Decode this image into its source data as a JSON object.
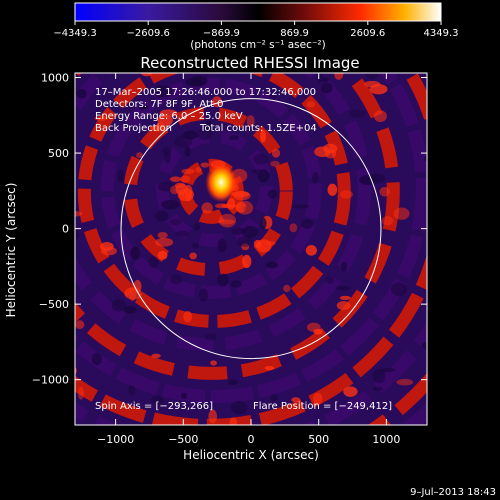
{
  "chart_data": {
    "type": "heatmap",
    "title": "Reconstructed RHESSI Image",
    "xlabel": "Heliocentric X (arcsec)",
    "ylabel": "Heliocentric Y (arcsec)",
    "xlim": [
      -1300,
      1300
    ],
    "ylim": [
      -1300,
      1030
    ],
    "x_ticks": [
      -1000,
      -500,
      0,
      500,
      1000
    ],
    "y_ticks": [
      1000,
      500,
      0,
      -500,
      -1000
    ],
    "x_tick_labels": [
      "−1000",
      "−500",
      "0",
      "500",
      "1000"
    ],
    "y_tick_labels": [
      "1000",
      "500",
      "0",
      "−500",
      "−1000"
    ],
    "colorbar": {
      "ticks": [
        -4349.3,
        -2609.6,
        -869.9,
        869.9,
        2609.6,
        4349.3
      ],
      "tick_labels": [
        "−4349.3",
        "−2609.6",
        "−869.9",
        "869.9",
        "2609.6",
        "4349.3"
      ],
      "range": [
        -4349.3,
        4349.3
      ],
      "unit_label": "(photons cm⁻² s⁻¹ asec⁻²)"
    },
    "annotations": {
      "time_range": "17–Mar–2005 17:26:46.000 to 17:32:46.000",
      "detectors": "Detectors: 7F 8F 9F, Att 0",
      "energy_range": "Energy Range: 6.0 – 25.0 keV",
      "method": "Back Projection",
      "total_counts": "Total counts: 1.5ZE+04",
      "spin_axis": "Spin Axis = [−293,266]",
      "flare_position": "Flare Position = [−249,412]"
    },
    "solar_limb": {
      "center": [
        0,
        0
      ],
      "radius": 960
    },
    "spin_axis_xy": [
      -293,
      266
    ],
    "flare_xy": [
      -249,
      412
    ],
    "colors": {
      "background": "#000000",
      "foreground": "#ffffff",
      "negative": "#2a0a5a",
      "positive": "#d81a0a",
      "peak": "#ffff80"
    }
  },
  "footer_date": "9–Jul–2013 18:43"
}
